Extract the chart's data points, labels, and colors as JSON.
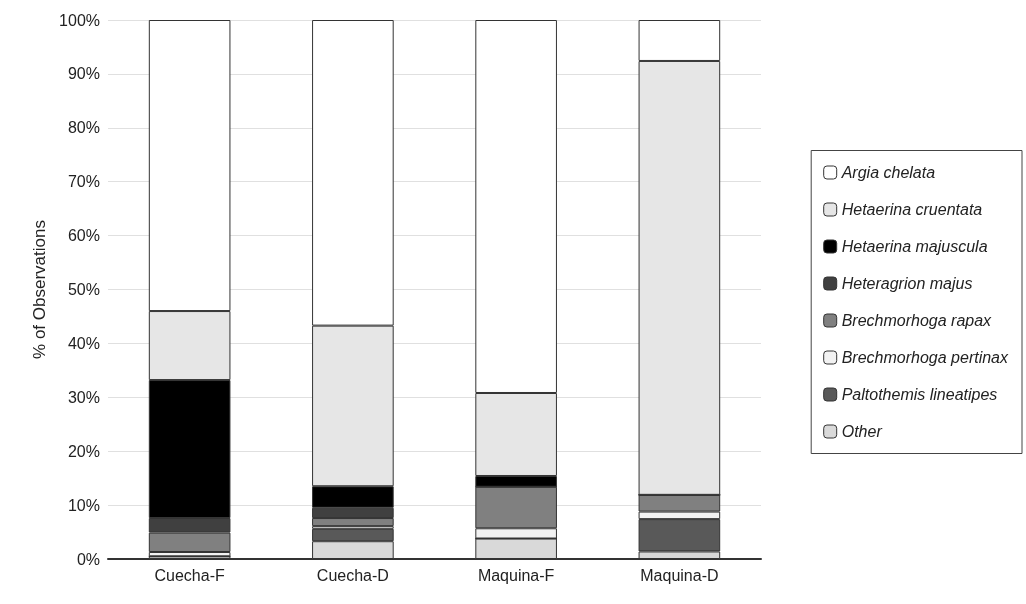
{
  "chart_data": {
    "type": "bar",
    "stacked": true,
    "ylabel": "% of Observations",
    "categories": [
      "Cuecha-F",
      "Cuecha-D",
      "Maquina-F",
      "Maquina-D"
    ],
    "ylim": [
      0,
      100
    ],
    "yticks": [
      {
        "value": 0,
        "label": "0%"
      },
      {
        "value": 10,
        "label": "10%"
      },
      {
        "value": 20,
        "label": "20%"
      },
      {
        "value": 30,
        "label": "30%"
      },
      {
        "value": 40,
        "label": "40%"
      },
      {
        "value": 50,
        "label": "50%"
      },
      {
        "value": 60,
        "label": "60%"
      },
      {
        "value": 70,
        "label": "70%"
      },
      {
        "value": 80,
        "label": "80%"
      },
      {
        "value": 90,
        "label": "90%"
      },
      {
        "value": 100,
        "label": "100%"
      }
    ],
    "grid": "y",
    "legend": "right",
    "series": [
      {
        "name": "Other",
        "color": "#d9d9d9",
        "values": [
          0.5,
          3.3,
          3.8,
          1.4
        ]
      },
      {
        "name": "Paltothemis lineatipes",
        "color": "#595959",
        "values": [
          0,
          2.3,
          0,
          6.0
        ]
      },
      {
        "name": "Brechmorhoga pertinax",
        "color": "#f2f2f2",
        "values": [
          0.8,
          0.5,
          1.9,
          1.4
        ]
      },
      {
        "name": "Brechmorhoga rapax",
        "color": "#808080",
        "values": [
          3.6,
          1.5,
          7.7,
          3.1
        ]
      },
      {
        "name": "Heteragrion majus",
        "color": "#404040",
        "values": [
          2.7,
          1.9,
          0,
          0
        ]
      },
      {
        "name": "Hetaerina majuscula",
        "color": "#000000",
        "values": [
          25.6,
          4.0,
          2.0,
          0
        ]
      },
      {
        "name": "Hetaerina cruentata",
        "color": "#e6e6e6",
        "values": [
          12.8,
          29.8,
          15.4,
          80.5
        ]
      },
      {
        "name": "Argia chelata",
        "color": "#ffffff",
        "values": [
          54.0,
          56.7,
          69.2,
          7.6
        ]
      }
    ]
  }
}
